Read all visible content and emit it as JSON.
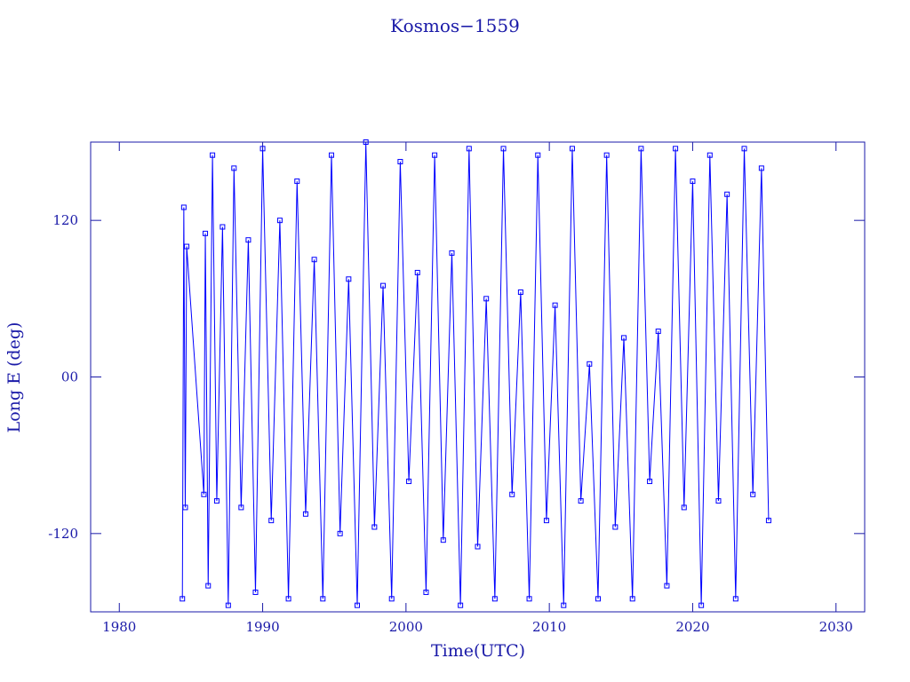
{
  "chart_data": {
    "type": "line",
    "title": "Kosmos−1559",
    "x_label": "Time(UTC)",
    "y_label": "Long E (deg)",
    "color": "#0000ff",
    "xlim": [
      1978,
      2032
    ],
    "ylim": [
      -180,
      180
    ],
    "xticks": [
      1980,
      1990,
      2000,
      2010,
      2020,
      2030
    ],
    "yticks": [
      -120,
      {
        "value": 0,
        "label": "00"
      },
      120
    ],
    "x": [
      1984.4,
      1984.5,
      1984.6,
      1984.7,
      1985.9,
      1986.0,
      1986.2,
      1986.5,
      1986.8,
      1987.2,
      1987.6,
      1988.0,
      1988.5,
      1989.0,
      1989.5,
      1990.0,
      1990.6,
      1991.2,
      1991.8,
      1992.4,
      1993.0,
      1993.6,
      1994.2,
      1994.8,
      1995.4,
      1996.0,
      1996.6,
      1997.2,
      1997.8,
      1998.4,
      1999.0,
      1999.6,
      2000.2,
      2000.8,
      2001.4,
      2002.0,
      2002.6,
      2003.2,
      2003.8,
      2004.4,
      2005.0,
      2005.6,
      2006.2,
      2006.8,
      2007.4,
      2008.0,
      2008.6,
      2009.2,
      2009.8,
      2010.4,
      2011.0,
      2011.6,
      2012.2,
      2012.8,
      2013.4,
      2014.0,
      2014.6,
      2015.2,
      2015.8,
      2016.4,
      2017.0,
      2017.6,
      2018.2,
      2018.8,
      2019.4,
      2020.0,
      2020.6,
      2021.2,
      2021.8,
      2022.4,
      2023.0,
      2023.6,
      2024.2,
      2024.8,
      2025.3
    ],
    "values": [
      -170,
      130,
      -100,
      100,
      -90,
      110,
      -160,
      170,
      -95,
      115,
      -175,
      160,
      -100,
      105,
      -165,
      175,
      -110,
      120,
      -170,
      150,
      -105,
      90,
      -170,
      170,
      -120,
      75,
      -175,
      180,
      -115,
      70,
      -170,
      165,
      -80,
      80,
      -165,
      170,
      -125,
      95,
      -175,
      175,
      -130,
      60,
      -170,
      175,
      -90,
      65,
      -170,
      170,
      -110,
      55,
      -175,
      175,
      -95,
      10,
      -170,
      170,
      -115,
      30,
      -170,
      175,
      -80,
      35,
      -160,
      175,
      -100,
      150,
      -175,
      170,
      -95,
      140,
      -170,
      175,
      -90,
      160,
      -110
    ]
  }
}
